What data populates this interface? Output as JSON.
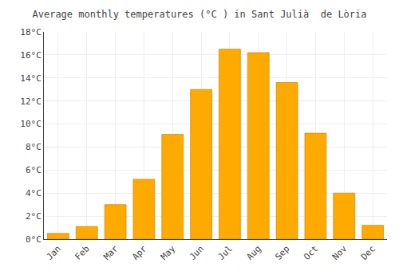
{
  "chart_data": {
    "type": "bar",
    "title": "Average monthly temperatures (°C ) in Sant Julià  de Lòria",
    "categories": [
      "Jan",
      "Feb",
      "Mar",
      "Apr",
      "May",
      "Jun",
      "Jul",
      "Aug",
      "Sep",
      "Oct",
      "Nov",
      "Dec"
    ],
    "values": [
      0.5,
      1.1,
      3.0,
      5.2,
      9.1,
      13.0,
      16.5,
      16.2,
      13.6,
      9.2,
      4.0,
      1.2
    ],
    "color": "#FFAA00",
    "ylim": [
      0,
      18
    ],
    "yticks": [
      {
        "value": 0,
        "label": "0°C"
      },
      {
        "value": 2,
        "label": "2°C"
      },
      {
        "value": 4,
        "label": "4°C"
      },
      {
        "value": 6,
        "label": "6°C"
      },
      {
        "value": 8,
        "label": "8°C"
      },
      {
        "value": 10,
        "label": "10°C"
      },
      {
        "value": 12,
        "label": "12°C"
      },
      {
        "value": 14,
        "label": "14°C"
      },
      {
        "value": 16,
        "label": "16°C"
      },
      {
        "value": 18,
        "label": "18°C"
      }
    ],
    "grid": true
  }
}
